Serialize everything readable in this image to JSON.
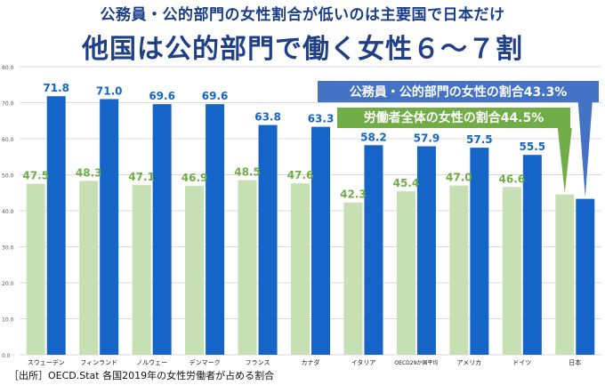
{
  "header": {
    "subtitle": "公務員・公的部門の女性割合が低いのは主要国で日本だけ",
    "title": "他国は公的部門で働く女性６～７割"
  },
  "source": "［出所］OECD.Stat 各国2019年の女性労働者が占める割合",
  "colors": {
    "public": "#1565c8",
    "all": "#c6e0b4",
    "public_label": "#1565c8",
    "all_label": "#70ad47",
    "callout_public_bg": "#4472c4",
    "callout_all_bg": "#70ad47"
  },
  "callouts": {
    "public": "公務員・公的部門の女性の割合43.3%",
    "all": "労働者全体の女性の割合44.5%"
  },
  "chart_data": {
    "type": "bar",
    "categories": [
      "スウェーデン",
      "フィンランド",
      "ノルウェー",
      "デンマーク",
      "フランス",
      "カナダ",
      "イタリア",
      "OECD29か国平均",
      "アメリカ",
      "ドイツ",
      "日本"
    ],
    "series": [
      {
        "key": "all",
        "values": [
          47.5,
          48.3,
          47.1,
          46.9,
          48.5,
          47.6,
          42.3,
          45.4,
          47.0,
          46.6,
          44.5
        ],
        "labels": [
          "47.5",
          "48.3",
          "47.1",
          "46.9",
          "48.5",
          "47.6",
          "42.3",
          "45.4",
          "47.0",
          "46.6",
          ""
        ]
      },
      {
        "key": "public",
        "values": [
          71.8,
          71.0,
          69.6,
          69.6,
          63.8,
          63.3,
          58.2,
          57.9,
          57.5,
          55.5,
          43.3
        ],
        "labels": [
          "71.8",
          "71.0",
          "69.6",
          "69.6",
          "63.8",
          "63.3",
          "58.2",
          "57.9",
          "57.5",
          "55.5",
          ""
        ]
      }
    ],
    "ylim": [
      0,
      80
    ],
    "yticks": [
      "0.0",
      "10.0",
      "20.0",
      "30.0",
      "40.0",
      "50.0",
      "60.0",
      "70.0",
      "80.0"
    ],
    "grid": true
  }
}
